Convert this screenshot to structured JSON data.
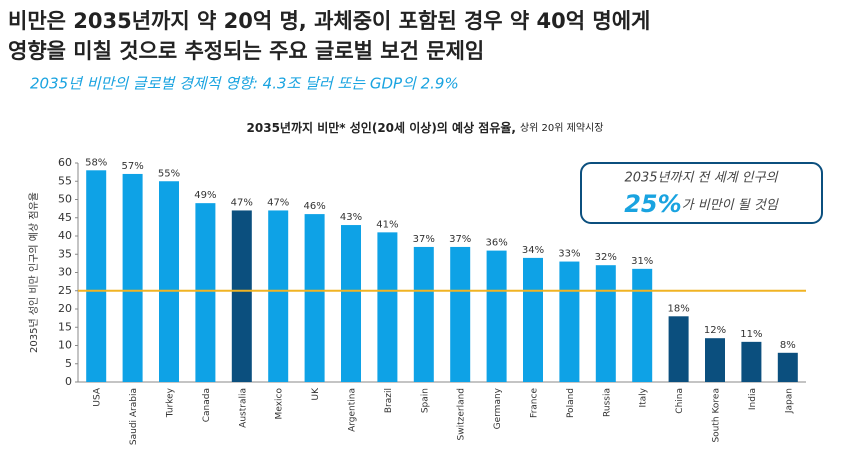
{
  "header": {
    "title_lines": [
      "비만은 2035년까지 약 20억 명, 과체중이 포함된 경우 약 40억 명에게",
      "영향을 미칠 것으로 추정되는 주요 글로벌 보건 문제임"
    ],
    "subtitle": "2035년 비만의 글로벌 경제적 영향: 4.3조 달러 또는 GDP의 2.9%"
  },
  "chart_data": {
    "type": "bar",
    "title": "2035년까지 비만* 성인(20세 이상)의 예상 점유율,",
    "title_note": "상위 20위 제약시장",
    "y_label": "2035년 성인 비만 인구의 예상 점유율",
    "categories": [
      "USA",
      "Saudi Arabia",
      "Turkey",
      "Canada",
      "Australia",
      "Mexico",
      "UK",
      "Argentina",
      "Brazil",
      "Spain",
      "Switzerland",
      "Germany",
      "France",
      "Poland",
      "Russia",
      "Italy",
      "China",
      "South Korea",
      "India",
      "Japan"
    ],
    "values": [
      58,
      57,
      55,
      49,
      47,
      47,
      46,
      43,
      41,
      37,
      37,
      36,
      34,
      33,
      32,
      31,
      18,
      12,
      11,
      8
    ],
    "value_labels": [
      "58%",
      "57%",
      "55%",
      "49%",
      "47%",
      "47%",
      "46%",
      "43%",
      "41%",
      "37%",
      "37%",
      "36%",
      "34%",
      "33%",
      "32%",
      "31%",
      "18%",
      "12%",
      "11%",
      "8%"
    ],
    "colors": [
      "#0ea2e6",
      "#0ea2e6",
      "#0ea2e6",
      "#0ea2e6",
      "#0b4f7e",
      "#0ea2e6",
      "#0ea2e6",
      "#0ea2e6",
      "#0ea2e6",
      "#0ea2e6",
      "#0ea2e6",
      "#0ea2e6",
      "#0ea2e6",
      "#0ea2e6",
      "#0ea2e6",
      "#0ea2e6",
      "#0b4f7e",
      "#0b4f7e",
      "#0b4f7e",
      "#0b4f7e"
    ],
    "ylim": [
      0,
      60
    ],
    "yticks": [
      0,
      5,
      10,
      15,
      20,
      25,
      30,
      35,
      40,
      45,
      50,
      55,
      60
    ],
    "reference_line": {
      "value": 25,
      "color": "#f0b323"
    },
    "callout": {
      "line1": "2035년까지 전 세계 인구의",
      "highlight": "25%",
      "line2": "가 비만이 될 것임"
    }
  }
}
